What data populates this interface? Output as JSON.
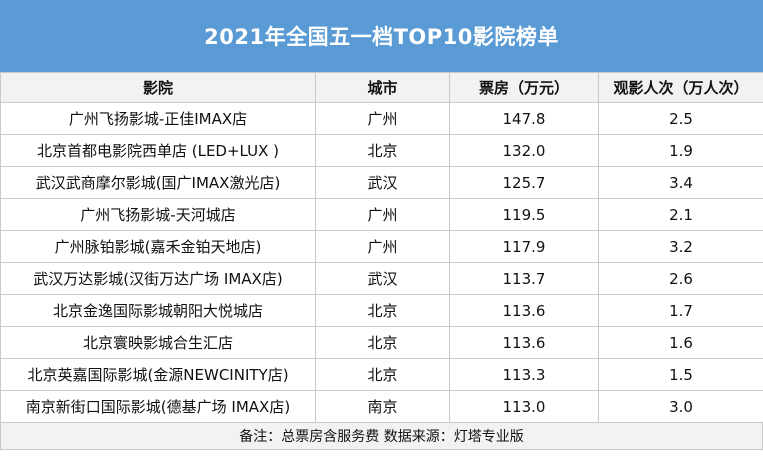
{
  "title": "2021年全国五一档TOP10影院榜单",
  "columns": [
    "影院",
    "城市",
    "票房（万元）",
    "观影人次（万人次）"
  ],
  "rows": [
    [
      "广州飞扬影城-正佳IMAX店",
      "广州",
      "147.8",
      "2.5"
    ],
    [
      "北京首都电影院西单店 (LED+LUX )",
      "北京",
      "132.0",
      "1.9"
    ],
    [
      "武汉武商摩尔影城(国广IMAX激光店)",
      "武汉",
      "125.7",
      "3.4"
    ],
    [
      "广州飞扬影城-天河城店",
      "广州",
      "119.5",
      "2.1"
    ],
    [
      "广州脉铂影城(嘉禾金铂天地店)",
      "广州",
      "117.9",
      "3.2"
    ],
    [
      "武汉万达影城(汉街万达广场 IMAX店)",
      "武汉",
      "113.7",
      "2.6"
    ],
    [
      "北京金逸国际影城朝阳大悦城店",
      "北京",
      "113.6",
      "1.7"
    ],
    [
      "北京寰映影城合生汇店",
      "北京",
      "113.6",
      "1.6"
    ],
    [
      "北京英嘉国际影城(金源NEWCINITY店)",
      "北京",
      "113.3",
      "1.5"
    ],
    [
      "南京新街口国际影城(德基广场 IMAX店)",
      "南京",
      "113.0",
      "3.0"
    ]
  ],
  "footer": "备注：总票房含服务费    数据来源：灯塔专业版",
  "colors": {
    "title_bg": "#5b9bd5",
    "header_bg": "#f2f2f2",
    "border": "#c9c9c9"
  }
}
